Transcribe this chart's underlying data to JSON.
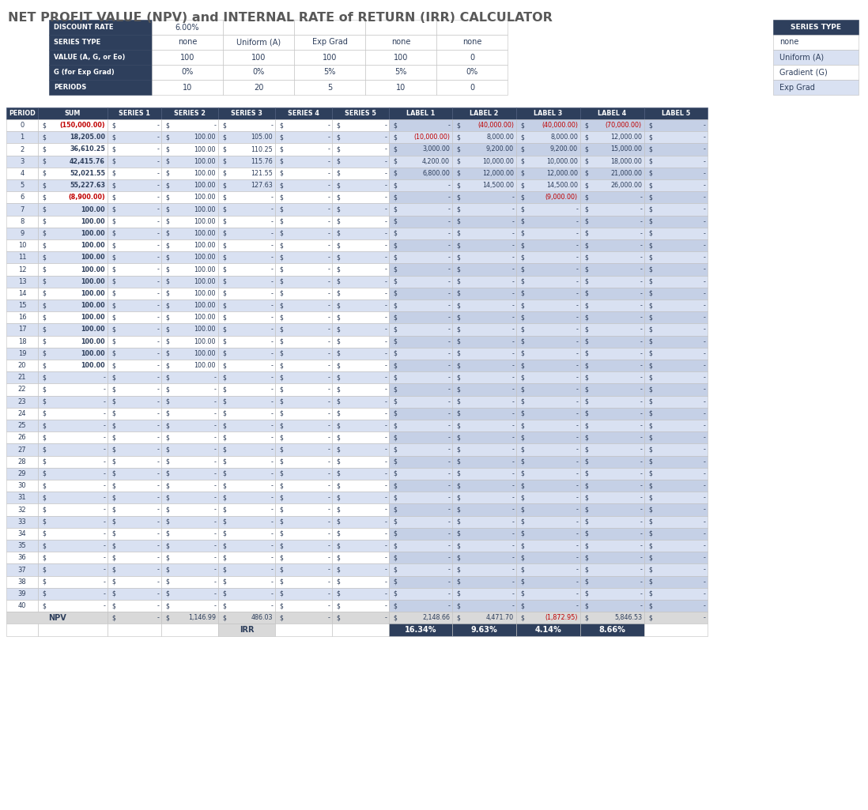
{
  "title": "NET PROFIT VALUE (NPV) and INTERNAL RATE of RETURN (IRR) CALCULATOR",
  "title_color": "#595959",
  "header_bg": "#2E3F5C",
  "header_fg": "#FFFFFF",
  "row_even_bg": "#FFFFFF",
  "row_odd_bg": "#D9E1F2",
  "label_even_bg": "#D9E1F2",
  "label_odd_bg": "#FFFFFF",
  "row_fg": "#2E3F5C",
  "npv_row_bg": "#D9D9D9",
  "irr_row_bg": "#2E3F5C",
  "irr_row_fg": "#FFFFFF",
  "red_text": "#C00000",
  "grid_color": "#BFBFBF",
  "discount_rate": "6.00%",
  "series_types": [
    "none",
    "Uniform (A)",
    "Exp Grad",
    "none",
    "none"
  ],
  "values_A": [
    "100",
    "100",
    "100",
    "100",
    "0"
  ],
  "values_G": [
    "0%",
    "0%",
    "5%",
    "5%",
    "0%"
  ],
  "periods": [
    "10",
    "20",
    "5",
    "10",
    "0"
  ],
  "input_table_labels": [
    "DISCOUNT RATE",
    "SERIES TYPE",
    "VALUE (A, G, or Eo)",
    "G (for Exp Grad)",
    "PERIODS"
  ],
  "col_headers": [
    "PERIOD",
    "SUM",
    "SERIES 1",
    "SERIES 2",
    "SERIES 3",
    "SERIES 4",
    "SERIES 5",
    "LABEL 1",
    "LABEL 2",
    "LABEL 3",
    "LABEL 4",
    "LABEL 5"
  ],
  "series_type_legend": [
    "none",
    "Uniform (A)",
    "Gradient (G)",
    "Exp Grad"
  ],
  "npv_values": [
    "-",
    "1,146.99",
    "486.03",
    "-",
    "-",
    "2,148.66",
    "4,471.70",
    "(1,872.95)",
    "5,846.53",
    "-"
  ],
  "irr_values": [
    "16.34%",
    "9.63%",
    "4.14%",
    "8.66%"
  ],
  "period_data": {
    "0": {
      "sum": "(150,000.00)",
      "s1": "-",
      "s2": "-",
      "s3": "-",
      "s4": "-",
      "s5": "-",
      "l1": "-",
      "l2": "(40,000.00)",
      "l3": "(40,000.00)",
      "l4": "(70,000.00)",
      "l5": "-"
    },
    "1": {
      "sum": "18,205.00",
      "s1": "-",
      "s2": "100.00",
      "s3": "105.00",
      "s4": "-",
      "s5": "-",
      "l1": "(10,000.00)",
      "l2": "8,000.00",
      "l3": "8,000.00",
      "l4": "12,000.00",
      "l5": "-"
    },
    "2": {
      "sum": "36,610.25",
      "s1": "-",
      "s2": "100.00",
      "s3": "110.25",
      "s4": "-",
      "s5": "-",
      "l1": "3,000.00",
      "l2": "9,200.00",
      "l3": "9,200.00",
      "l4": "15,000.00",
      "l5": "-"
    },
    "3": {
      "sum": "42,415.76",
      "s1": "-",
      "s2": "100.00",
      "s3": "115.76",
      "s4": "-",
      "s5": "-",
      "l1": "4,200.00",
      "l2": "10,000.00",
      "l3": "10,000.00",
      "l4": "18,000.00",
      "l5": "-"
    },
    "4": {
      "sum": "52,021.55",
      "s1": "-",
      "s2": "100.00",
      "s3": "121.55",
      "s4": "-",
      "s5": "-",
      "l1": "6,800.00",
      "l2": "12,000.00",
      "l3": "12,000.00",
      "l4": "21,000.00",
      "l5": "-"
    },
    "5": {
      "sum": "55,227.63",
      "s1": "-",
      "s2": "100.00",
      "s3": "127.63",
      "s4": "-",
      "s5": "-",
      "l1": "-",
      "l2": "14,500.00",
      "l3": "14,500.00",
      "l4": "26,000.00",
      "l5": "-"
    },
    "6": {
      "sum": "(8,900.00)",
      "s1": "-",
      "s2": "100.00",
      "s3": "-",
      "s4": "-",
      "s5": "-",
      "l1": "-",
      "l2": "-",
      "l3": "(9,000.00)",
      "l4": "-",
      "l5": "-"
    },
    "7": {
      "sum": "100.00",
      "s1": "-",
      "s2": "100.00",
      "s3": "-",
      "s4": "-",
      "s5": "-",
      "l1": "-",
      "l2": "-",
      "l3": "-",
      "l4": "-",
      "l5": "-"
    },
    "8": {
      "sum": "100.00",
      "s1": "-",
      "s2": "100.00",
      "s3": "-",
      "s4": "-",
      "s5": "-",
      "l1": "-",
      "l2": "-",
      "l3": "-",
      "l4": "-",
      "l5": "-"
    },
    "9": {
      "sum": "100.00",
      "s1": "-",
      "s2": "100.00",
      "s3": "-",
      "s4": "-",
      "s5": "-",
      "l1": "-",
      "l2": "-",
      "l3": "-",
      "l4": "-",
      "l5": "-"
    },
    "10": {
      "sum": "100.00",
      "s1": "-",
      "s2": "100.00",
      "s3": "-",
      "s4": "-",
      "s5": "-",
      "l1": "-",
      "l2": "-",
      "l3": "-",
      "l4": "-",
      "l5": "-"
    },
    "11": {
      "sum": "100.00",
      "s1": "-",
      "s2": "100.00",
      "s3": "-",
      "s4": "-",
      "s5": "-",
      "l1": "-",
      "l2": "-",
      "l3": "-",
      "l4": "-",
      "l5": "-"
    },
    "12": {
      "sum": "100.00",
      "s1": "-",
      "s2": "100.00",
      "s3": "-",
      "s4": "-",
      "s5": "-",
      "l1": "-",
      "l2": "-",
      "l3": "-",
      "l4": "-",
      "l5": "-"
    },
    "13": {
      "sum": "100.00",
      "s1": "-",
      "s2": "100.00",
      "s3": "-",
      "s4": "-",
      "s5": "-",
      "l1": "-",
      "l2": "-",
      "l3": "-",
      "l4": "-",
      "l5": "-"
    },
    "14": {
      "sum": "100.00",
      "s1": "-",
      "s2": "100.00",
      "s3": "-",
      "s4": "-",
      "s5": "-",
      "l1": "-",
      "l2": "-",
      "l3": "-",
      "l4": "-",
      "l5": "-"
    },
    "15": {
      "sum": "100.00",
      "s1": "-",
      "s2": "100.00",
      "s3": "-",
      "s4": "-",
      "s5": "-",
      "l1": "-",
      "l2": "-",
      "l3": "-",
      "l4": "-",
      "l5": "-"
    },
    "16": {
      "sum": "100.00",
      "s1": "-",
      "s2": "100.00",
      "s3": "-",
      "s4": "-",
      "s5": "-",
      "l1": "-",
      "l2": "-",
      "l3": "-",
      "l4": "-",
      "l5": "-"
    },
    "17": {
      "sum": "100.00",
      "s1": "-",
      "s2": "100.00",
      "s3": "-",
      "s4": "-",
      "s5": "-",
      "l1": "-",
      "l2": "-",
      "l3": "-",
      "l4": "-",
      "l5": "-"
    },
    "18": {
      "sum": "100.00",
      "s1": "-",
      "s2": "100.00",
      "s3": "-",
      "s4": "-",
      "s5": "-",
      "l1": "-",
      "l2": "-",
      "l3": "-",
      "l4": "-",
      "l5": "-"
    },
    "19": {
      "sum": "100.00",
      "s1": "-",
      "s2": "100.00",
      "s3": "-",
      "s4": "-",
      "s5": "-",
      "l1": "-",
      "l2": "-",
      "l3": "-",
      "l4": "-",
      "l5": "-"
    },
    "20": {
      "sum": "100.00",
      "s1": "-",
      "s2": "100.00",
      "s3": "-",
      "s4": "-",
      "s5": "-",
      "l1": "-",
      "l2": "-",
      "l3": "-",
      "l4": "-",
      "l5": "-"
    },
    "21": {
      "sum": "-",
      "s1": "-",
      "s2": "-",
      "s3": "-",
      "s4": "-",
      "s5": "-",
      "l1": "-",
      "l2": "-",
      "l3": "-",
      "l4": "-",
      "l5": "-"
    },
    "22": {
      "sum": "-",
      "s1": "-",
      "s2": "-",
      "s3": "-",
      "s4": "-",
      "s5": "-",
      "l1": "-",
      "l2": "-",
      "l3": "-",
      "l4": "-",
      "l5": "-"
    },
    "23": {
      "sum": "-",
      "s1": "-",
      "s2": "-",
      "s3": "-",
      "s4": "-",
      "s5": "-",
      "l1": "-",
      "l2": "-",
      "l3": "-",
      "l4": "-",
      "l5": "-"
    },
    "24": {
      "sum": "-",
      "s1": "-",
      "s2": "-",
      "s3": "-",
      "s4": "-",
      "s5": "-",
      "l1": "-",
      "l2": "-",
      "l3": "-",
      "l4": "-",
      "l5": "-"
    },
    "25": {
      "sum": "-",
      "s1": "-",
      "s2": "-",
      "s3": "-",
      "s4": "-",
      "s5": "-",
      "l1": "-",
      "l2": "-",
      "l3": "-",
      "l4": "-",
      "l5": "-"
    },
    "26": {
      "sum": "-",
      "s1": "-",
      "s2": "-",
      "s3": "-",
      "s4": "-",
      "s5": "-",
      "l1": "-",
      "l2": "-",
      "l3": "-",
      "l4": "-",
      "l5": "-"
    },
    "27": {
      "sum": "-",
      "s1": "-",
      "s2": "-",
      "s3": "-",
      "s4": "-",
      "s5": "-",
      "l1": "-",
      "l2": "-",
      "l3": "-",
      "l4": "-",
      "l5": "-"
    },
    "28": {
      "sum": "-",
      "s1": "-",
      "s2": "-",
      "s3": "-",
      "s4": "-",
      "s5": "-",
      "l1": "-",
      "l2": "-",
      "l3": "-",
      "l4": "-",
      "l5": "-"
    },
    "29": {
      "sum": "-",
      "s1": "-",
      "s2": "-",
      "s3": "-",
      "s4": "-",
      "s5": "-",
      "l1": "-",
      "l2": "-",
      "l3": "-",
      "l4": "-",
      "l5": "-"
    },
    "30": {
      "sum": "-",
      "s1": "-",
      "s2": "-",
      "s3": "-",
      "s4": "-",
      "s5": "-",
      "l1": "-",
      "l2": "-",
      "l3": "-",
      "l4": "-",
      "l5": "-"
    },
    "31": {
      "sum": "-",
      "s1": "-",
      "s2": "-",
      "s3": "-",
      "s4": "-",
      "s5": "-",
      "l1": "-",
      "l2": "-",
      "l3": "-",
      "l4": "-",
      "l5": "-"
    },
    "32": {
      "sum": "-",
      "s1": "-",
      "s2": "-",
      "s3": "-",
      "s4": "-",
      "s5": "-",
      "l1": "-",
      "l2": "-",
      "l3": "-",
      "l4": "-",
      "l5": "-"
    },
    "33": {
      "sum": "-",
      "s1": "-",
      "s2": "-",
      "s3": "-",
      "s4": "-",
      "s5": "-",
      "l1": "-",
      "l2": "-",
      "l3": "-",
      "l4": "-",
      "l5": "-"
    },
    "34": {
      "sum": "-",
      "s1": "-",
      "s2": "-",
      "s3": "-",
      "s4": "-",
      "s5": "-",
      "l1": "-",
      "l2": "-",
      "l3": "-",
      "l4": "-",
      "l5": "-"
    },
    "35": {
      "sum": "-",
      "s1": "-",
      "s2": "-",
      "s3": "-",
      "s4": "-",
      "s5": "-",
      "l1": "-",
      "l2": "-",
      "l3": "-",
      "l4": "-",
      "l5": "-"
    },
    "36": {
      "sum": "-",
      "s1": "-",
      "s2": "-",
      "s3": "-",
      "s4": "-",
      "s5": "-",
      "l1": "-",
      "l2": "-",
      "l3": "-",
      "l4": "-",
      "l5": "-"
    },
    "37": {
      "sum": "-",
      "s1": "-",
      "s2": "-",
      "s3": "-",
      "s4": "-",
      "s5": "-",
      "l1": "-",
      "l2": "-",
      "l3": "-",
      "l4": "-",
      "l5": "-"
    },
    "38": {
      "sum": "-",
      "s1": "-",
      "s2": "-",
      "s3": "-",
      "s4": "-",
      "s5": "-",
      "l1": "-",
      "l2": "-",
      "l3": "-",
      "l4": "-",
      "l5": "-"
    },
    "39": {
      "sum": "-",
      "s1": "-",
      "s2": "-",
      "s3": "-",
      "s4": "-",
      "s5": "-",
      "l1": "-",
      "l2": "-",
      "l3": "-",
      "l4": "-",
      "l5": "-"
    },
    "40": {
      "sum": "-",
      "s1": "-",
      "s2": "-",
      "s3": "-",
      "s4": "-",
      "s5": "-",
      "l1": "-",
      "l2": "-",
      "l3": "-",
      "l4": "-",
      "l5": "-"
    }
  }
}
